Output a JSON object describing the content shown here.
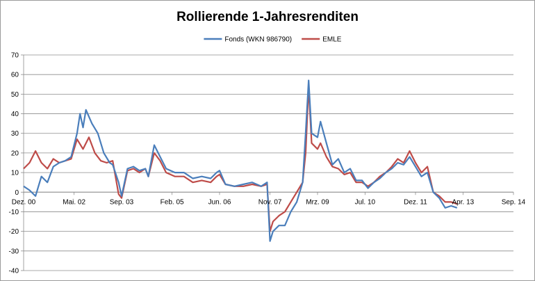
{
  "chart_data": {
    "type": "line",
    "title": "Rollierende 1-Jahresrenditen",
    "xlabel": "",
    "ylabel": "",
    "ylim": [
      -40,
      70
    ],
    "yticks": [
      -40,
      -30,
      -20,
      -10,
      0,
      10,
      20,
      30,
      40,
      50,
      60,
      70
    ],
    "xlim": [
      "2000-12",
      "2014-09"
    ],
    "xticks": [
      {
        "date": "2000-12",
        "label": "Dez. 00"
      },
      {
        "date": "2002-05",
        "label": "Mai. 02"
      },
      {
        "date": "2003-09",
        "label": "Sep. 03"
      },
      {
        "date": "2005-02",
        "label": "Feb. 05"
      },
      {
        "date": "2006-06",
        "label": "Jun. 06"
      },
      {
        "date": "2007-11",
        "label": "Nov. 07"
      },
      {
        "date": "2009-03",
        "label": "Mrz. 09"
      },
      {
        "date": "2010-07",
        "label": "Jul. 10"
      },
      {
        "date": "2011-12",
        "label": "Dez. 11"
      },
      {
        "date": "2013-04",
        "label": "Apr. 13"
      },
      {
        "date": "2014-09",
        "label": "Sep. 14"
      }
    ],
    "grid": "horizontal",
    "legend_position": "top",
    "series": [
      {
        "name": "Fonds (WKN 986790)",
        "color": "#4a7ebb",
        "points": [
          [
            "2000-12",
            3
          ],
          [
            "2001-02",
            1
          ],
          [
            "2001-04",
            -2
          ],
          [
            "2001-06",
            8
          ],
          [
            "2001-08",
            5
          ],
          [
            "2001-10",
            13
          ],
          [
            "2001-12",
            15
          ],
          [
            "2002-02",
            16
          ],
          [
            "2002-04",
            18
          ],
          [
            "2002-06",
            30
          ],
          [
            "2002-07",
            40
          ],
          [
            "2002-08",
            33
          ],
          [
            "2002-09",
            42
          ],
          [
            "2002-11",
            35
          ],
          [
            "2003-01",
            30
          ],
          [
            "2003-03",
            20
          ],
          [
            "2003-05",
            15
          ],
          [
            "2003-06",
            14
          ],
          [
            "2003-08",
            5
          ],
          [
            "2003-09",
            -2
          ],
          [
            "2003-11",
            12
          ],
          [
            "2004-01",
            13
          ],
          [
            "2004-03",
            11
          ],
          [
            "2004-05",
            12
          ],
          [
            "2004-06",
            8
          ],
          [
            "2004-08",
            24
          ],
          [
            "2004-10",
            18
          ],
          [
            "2004-12",
            12
          ],
          [
            "2005-03",
            10
          ],
          [
            "2005-06",
            10
          ],
          [
            "2005-09",
            7
          ],
          [
            "2005-12",
            8
          ],
          [
            "2006-03",
            7
          ],
          [
            "2006-05",
            10
          ],
          [
            "2006-06",
            11
          ],
          [
            "2006-08",
            4
          ],
          [
            "2006-11",
            3
          ],
          [
            "2007-02",
            4
          ],
          [
            "2007-05",
            5
          ],
          [
            "2007-08",
            3
          ],
          [
            "2007-10",
            5
          ],
          [
            "2007-11",
            -25
          ],
          [
            "2007-12",
            -20
          ],
          [
            "2008-02",
            -17
          ],
          [
            "2008-04",
            -17
          ],
          [
            "2008-06",
            -10
          ],
          [
            "2008-08",
            -5
          ],
          [
            "2008-10",
            5
          ],
          [
            "2008-11",
            30
          ],
          [
            "2008-12",
            57
          ],
          [
            "2009-01",
            30
          ],
          [
            "2009-03",
            28
          ],
          [
            "2009-04",
            36
          ],
          [
            "2009-06",
            25
          ],
          [
            "2009-08",
            14
          ],
          [
            "2009-10",
            17
          ],
          [
            "2009-12",
            10
          ],
          [
            "2010-02",
            12
          ],
          [
            "2010-04",
            6
          ],
          [
            "2010-06",
            6
          ],
          [
            "2010-08",
            2
          ],
          [
            "2010-10",
            5
          ],
          [
            "2010-12",
            7
          ],
          [
            "2011-02",
            10
          ],
          [
            "2011-04",
            12
          ],
          [
            "2011-06",
            15
          ],
          [
            "2011-08",
            14
          ],
          [
            "2011-10",
            18
          ],
          [
            "2011-12",
            13
          ],
          [
            "2012-02",
            8
          ],
          [
            "2012-04",
            10
          ],
          [
            "2012-06",
            0
          ],
          [
            "2012-08",
            -3
          ],
          [
            "2012-10",
            -8
          ],
          [
            "2012-12",
            -7
          ],
          [
            "2013-02",
            -8
          ]
        ]
      },
      {
        "name": "EMLE",
        "color": "#be4b48",
        "points": [
          [
            "2000-12",
            12
          ],
          [
            "2001-02",
            15
          ],
          [
            "2001-04",
            21
          ],
          [
            "2001-06",
            15
          ],
          [
            "2001-08",
            12
          ],
          [
            "2001-10",
            17
          ],
          [
            "2001-12",
            15
          ],
          [
            "2002-02",
            16
          ],
          [
            "2002-04",
            17
          ],
          [
            "2002-06",
            27
          ],
          [
            "2002-08",
            22
          ],
          [
            "2002-10",
            28
          ],
          [
            "2002-12",
            20
          ],
          [
            "2003-02",
            16
          ],
          [
            "2003-04",
            15
          ],
          [
            "2003-06",
            16
          ],
          [
            "2003-08",
            -1
          ],
          [
            "2003-09",
            -3
          ],
          [
            "2003-11",
            11
          ],
          [
            "2004-01",
            12
          ],
          [
            "2004-03",
            10
          ],
          [
            "2004-05",
            12
          ],
          [
            "2004-06",
            8
          ],
          [
            "2004-08",
            20
          ],
          [
            "2004-10",
            16
          ],
          [
            "2004-12",
            10
          ],
          [
            "2005-03",
            8
          ],
          [
            "2005-06",
            8
          ],
          [
            "2005-09",
            5
          ],
          [
            "2005-12",
            6
          ],
          [
            "2006-03",
            5
          ],
          [
            "2006-05",
            8
          ],
          [
            "2006-06",
            9
          ],
          [
            "2006-08",
            4
          ],
          [
            "2006-11",
            3
          ],
          [
            "2007-02",
            3
          ],
          [
            "2007-05",
            4
          ],
          [
            "2007-08",
            3
          ],
          [
            "2007-10",
            4
          ],
          [
            "2007-11",
            -20
          ],
          [
            "2007-12",
            -15
          ],
          [
            "2008-02",
            -12
          ],
          [
            "2008-04",
            -10
          ],
          [
            "2008-06",
            -5
          ],
          [
            "2008-08",
            0
          ],
          [
            "2008-10",
            5
          ],
          [
            "2008-11",
            20
          ],
          [
            "2008-12",
            54
          ],
          [
            "2009-01",
            25
          ],
          [
            "2009-03",
            22
          ],
          [
            "2009-04",
            25
          ],
          [
            "2009-06",
            18
          ],
          [
            "2009-08",
            13
          ],
          [
            "2009-10",
            12
          ],
          [
            "2009-12",
            9
          ],
          [
            "2010-02",
            10
          ],
          [
            "2010-04",
            5
          ],
          [
            "2010-06",
            5
          ],
          [
            "2010-08",
            3
          ],
          [
            "2010-10",
            5
          ],
          [
            "2010-12",
            8
          ],
          [
            "2011-02",
            10
          ],
          [
            "2011-04",
            13
          ],
          [
            "2011-06",
            17
          ],
          [
            "2011-08",
            15
          ],
          [
            "2011-10",
            21
          ],
          [
            "2011-12",
            15
          ],
          [
            "2012-02",
            10
          ],
          [
            "2012-04",
            13
          ],
          [
            "2012-06",
            0
          ],
          [
            "2012-08",
            -2
          ],
          [
            "2012-10",
            -5
          ],
          [
            "2012-12",
            -5
          ],
          [
            "2013-02",
            -6
          ]
        ]
      }
    ]
  }
}
